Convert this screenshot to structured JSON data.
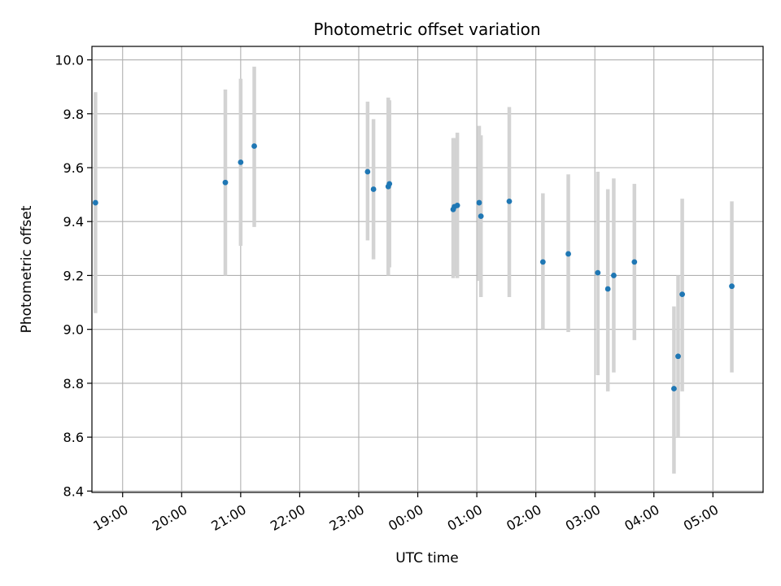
{
  "chart_data": {
    "type": "scatter",
    "title": "Photometric offset variation",
    "xlabel": "UTC time",
    "ylabel": "Photometric offset",
    "x_axis": {
      "unit": "UTC hours (after 24:00 continues past midnight)",
      "xlim": [
        18.48,
        29.85
      ],
      "ticks": [
        19,
        20,
        21,
        22,
        23,
        24,
        25,
        26,
        27,
        28,
        29
      ],
      "tick_labels": [
        "19:00",
        "20:00",
        "21:00",
        "22:00",
        "23:00",
        "00:00",
        "01:00",
        "02:00",
        "03:00",
        "04:00",
        "05:00"
      ]
    },
    "y_axis": {
      "ylim": [
        8.395,
        10.05
      ],
      "ticks": [
        8.4,
        8.6,
        8.8,
        9.0,
        9.2,
        9.4,
        9.6,
        9.8,
        10.0
      ],
      "tick_labels": [
        "8.4",
        "8.6",
        "8.8",
        "9.0",
        "9.2",
        "9.4",
        "9.6",
        "9.8",
        "10.0"
      ]
    },
    "grid": true,
    "point_color": "#1f77b4",
    "errorbar_color": "#d3d3d3",
    "points": [
      {
        "time": "18:32",
        "x": 18.54,
        "y": 9.47,
        "lo": 9.06,
        "hi": 9.88
      },
      {
        "time": "20:44",
        "x": 20.74,
        "y": 9.545,
        "lo": 9.2,
        "hi": 9.89
      },
      {
        "time": "21:00",
        "x": 21.0,
        "y": 9.62,
        "lo": 9.31,
        "hi": 9.93
      },
      {
        "time": "21:14",
        "x": 21.23,
        "y": 9.68,
        "lo": 9.38,
        "hi": 9.975
      },
      {
        "time": "23:09",
        "x": 23.15,
        "y": 9.585,
        "lo": 9.33,
        "hi": 9.845
      },
      {
        "time": "23:15",
        "x": 23.25,
        "y": 9.52,
        "lo": 9.26,
        "hi": 9.78
      },
      {
        "time": "23:30",
        "x": 23.5,
        "y": 9.53,
        "lo": 9.2,
        "hi": 9.86
      },
      {
        "time": "23:31",
        "x": 23.52,
        "y": 9.54,
        "lo": 9.23,
        "hi": 9.85
      },
      {
        "time": "00:36",
        "x": 24.6,
        "y": 9.445,
        "lo": 9.19,
        "hi": 9.71
      },
      {
        "time": "00:37",
        "x": 24.62,
        "y": 9.455,
        "lo": 9.2,
        "hi": 9.71
      },
      {
        "time": "00:40",
        "x": 24.67,
        "y": 9.46,
        "lo": 9.19,
        "hi": 9.73
      },
      {
        "time": "01:02",
        "x": 25.04,
        "y": 9.47,
        "lo": 9.18,
        "hi": 9.755
      },
      {
        "time": "01:04",
        "x": 25.07,
        "y": 9.42,
        "lo": 9.12,
        "hi": 9.72
      },
      {
        "time": "01:33",
        "x": 25.55,
        "y": 9.475,
        "lo": 9.12,
        "hi": 9.825
      },
      {
        "time": "02:07",
        "x": 26.12,
        "y": 9.25,
        "lo": 9.0,
        "hi": 9.505
      },
      {
        "time": "02:33",
        "x": 26.55,
        "y": 9.28,
        "lo": 8.99,
        "hi": 9.575
      },
      {
        "time": "03:03",
        "x": 27.05,
        "y": 9.21,
        "lo": 8.83,
        "hi": 9.585
      },
      {
        "time": "03:13",
        "x": 27.22,
        "y": 9.15,
        "lo": 8.77,
        "hi": 9.52
      },
      {
        "time": "03:19",
        "x": 27.32,
        "y": 9.2,
        "lo": 8.84,
        "hi": 9.56
      },
      {
        "time": "03:40",
        "x": 27.67,
        "y": 9.25,
        "lo": 8.96,
        "hi": 9.54
      },
      {
        "time": "04:20",
        "x": 28.34,
        "y": 8.78,
        "lo": 8.465,
        "hi": 9.085
      },
      {
        "time": "04:24",
        "x": 28.41,
        "y": 8.9,
        "lo": 8.6,
        "hi": 9.2
      },
      {
        "time": "04:29",
        "x": 28.48,
        "y": 9.13,
        "lo": 8.77,
        "hi": 9.485
      },
      {
        "time": "05:19",
        "x": 29.32,
        "y": 9.16,
        "lo": 8.84,
        "hi": 9.475
      }
    ]
  }
}
